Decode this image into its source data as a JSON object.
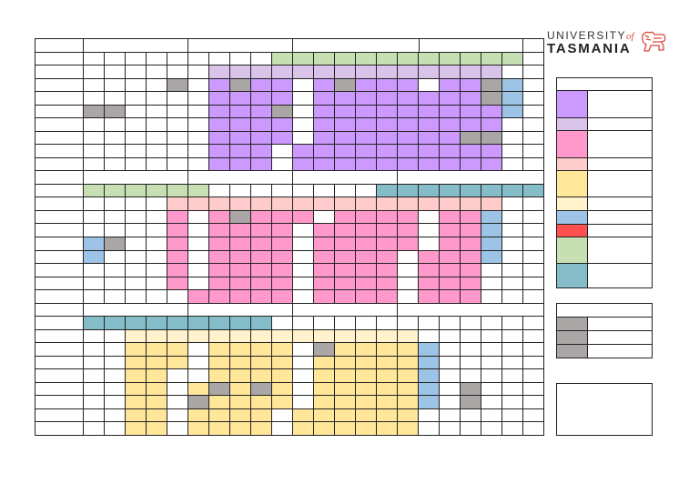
{
  "logo": {
    "line1": "UNIVERSITY",
    "of": "of",
    "line2": "TASMANIA"
  },
  "colors": {
    "purple": "#cc99ff",
    "lilac": "#d9c3e9",
    "gray": "#aaa6a6",
    "green": "#c6e0b4",
    "blue": "#9dc3e6",
    "pink": "#ff99cc",
    "light_pink": "#ffcccc",
    "yellow": "#ffe699",
    "light_yellow": "#fff2cc",
    "teal": "#84bcc8",
    "red": "#ff5050",
    "accent": "#e0463b"
  },
  "legend": {
    "swatches": [
      "purple",
      "lilac",
      "pink",
      "light_pink",
      "yellow",
      "light_yellow",
      "blue",
      "red",
      "green",
      "teal"
    ],
    "gray_rows": 3
  }
}
